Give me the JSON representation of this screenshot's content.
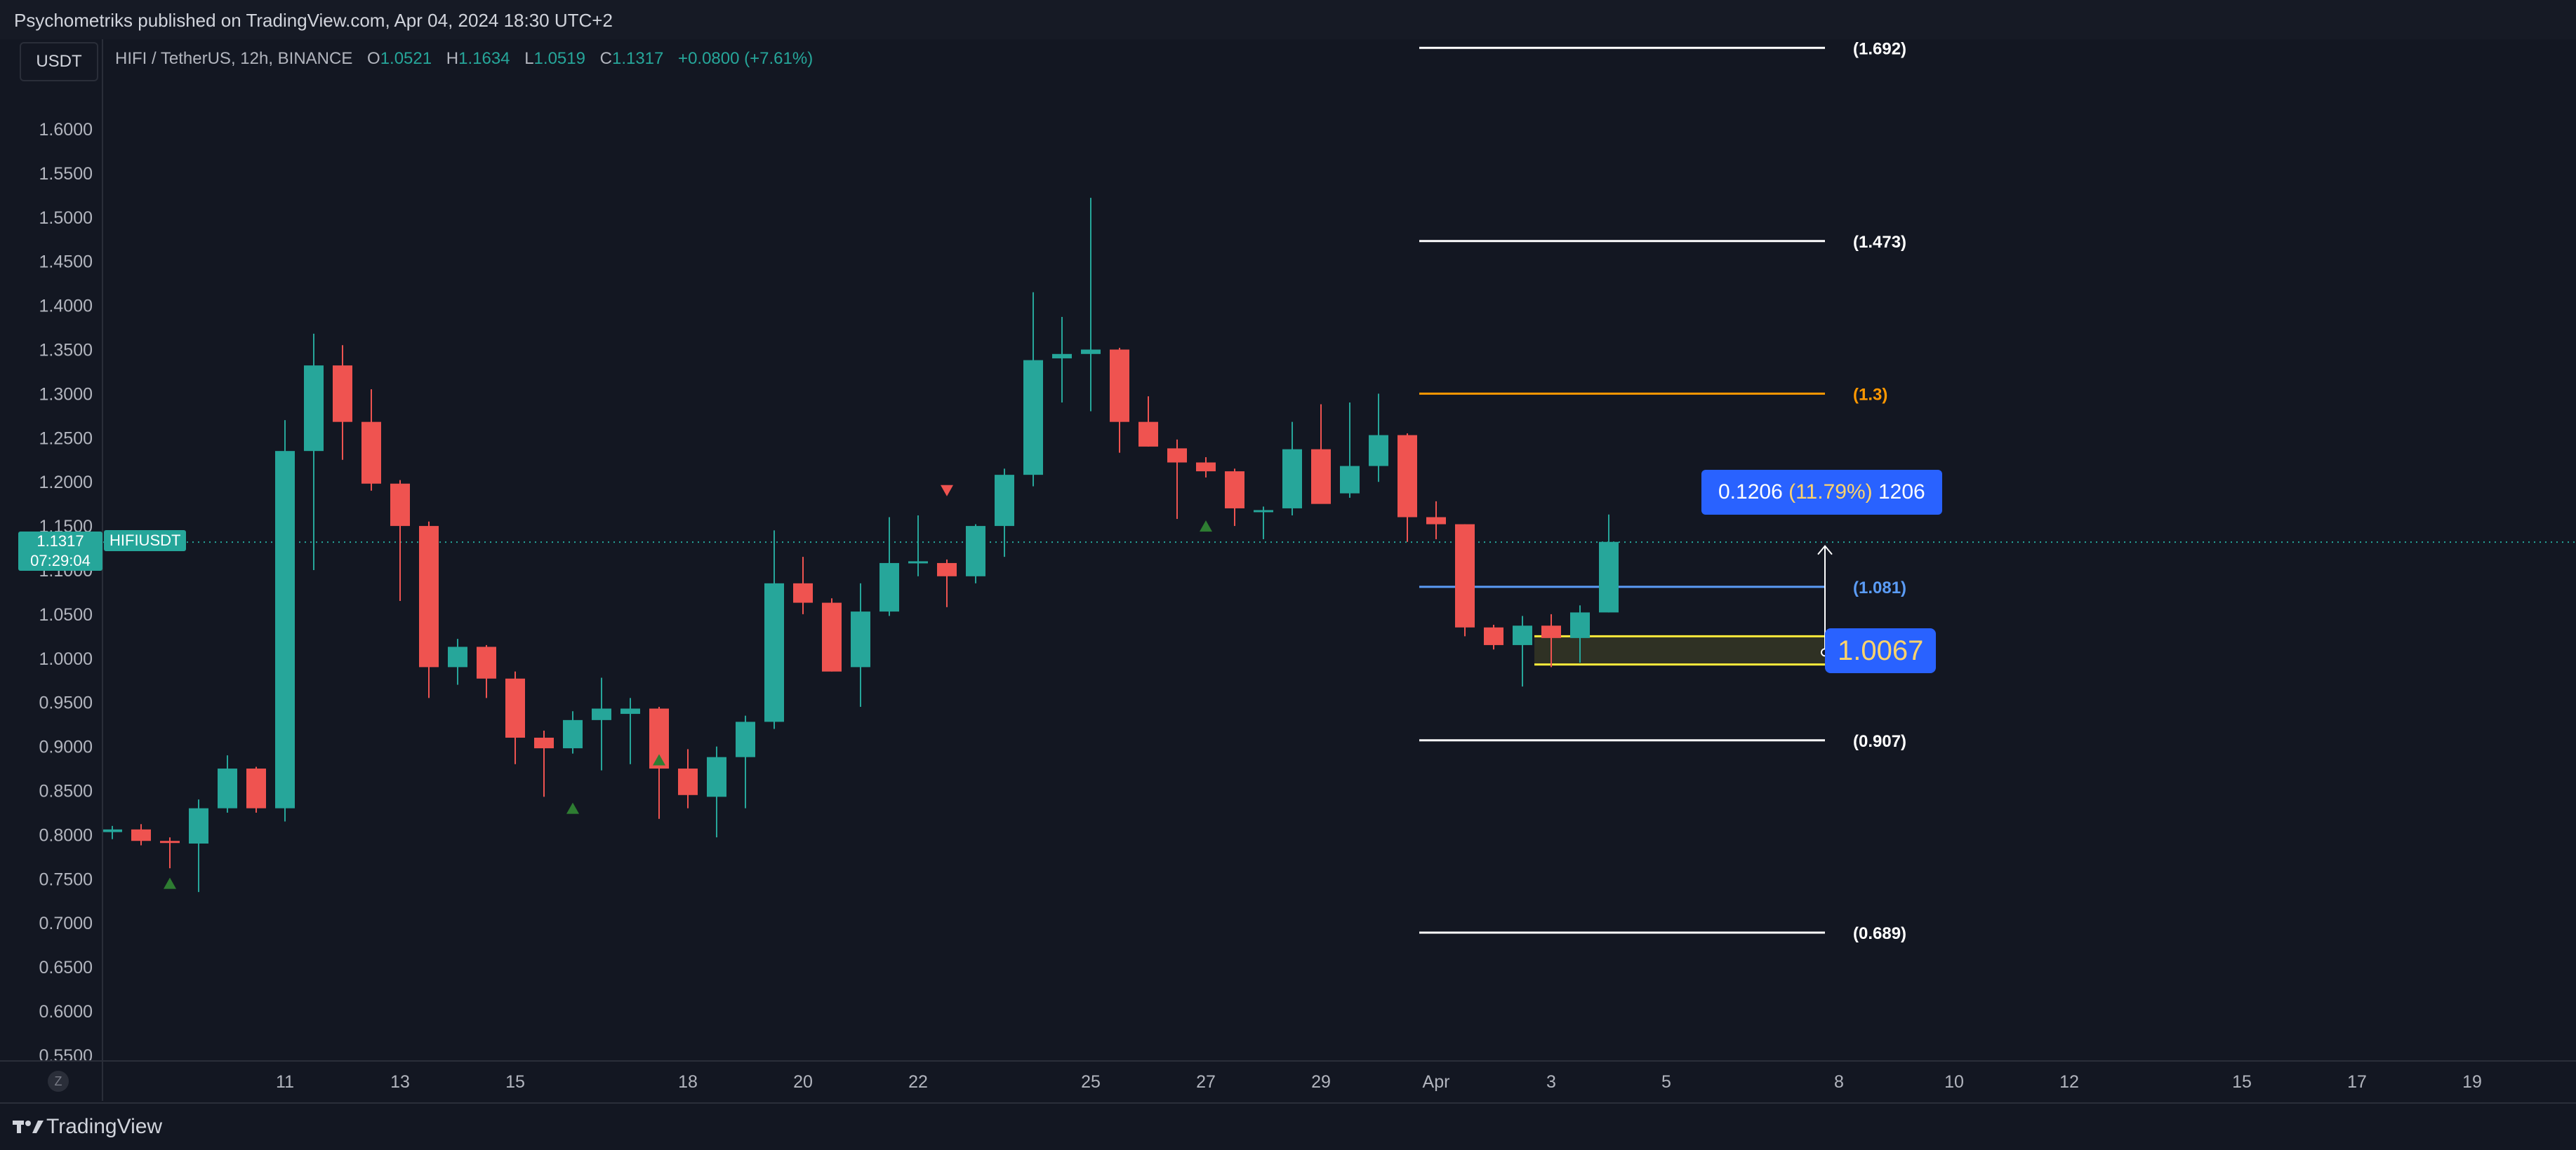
{
  "header": {
    "published_text": "Psychometriks published on TradingView.com, Apr 04, 2024 18:30 UTC+2"
  },
  "toolbar": {
    "currency": "USDT"
  },
  "legend": {
    "symbol_desc": "HIFI / TetherUS, 12h, BINANCE",
    "open_label": "O",
    "open": "1.0521",
    "high_label": "H",
    "high": "1.1634",
    "low_label": "L",
    "low": "1.0519",
    "close_label": "C",
    "close": "1.1317",
    "change": "+0.0800 (+7.61%)"
  },
  "price_tag": {
    "price": "1.1317",
    "countdown": "07:29:04",
    "symbol": "HIFIUSDT"
  },
  "measure": {
    "value": "0.1206",
    "percent": "(11.79%)",
    "ticks": "1206",
    "cursor_price": "1.0067"
  },
  "footer": {
    "brand": "TradingView",
    "z_button": "Z"
  },
  "colors": {
    "background": "#131722",
    "up": "#26a69a",
    "down": "#ef5350",
    "fib_white": "#ffffff",
    "fib_orange": "#ff9800",
    "fib_blue": "#5b9cf6",
    "measure_box": "#2962ff"
  },
  "chart_data": {
    "type": "candlestick",
    "ylim": [
      0.55,
      1.65
    ],
    "y_ticks": [
      "1.6000",
      "1.5500",
      "1.5000",
      "1.4500",
      "1.4000",
      "1.3500",
      "1.3000",
      "1.2500",
      "1.2000",
      "1.1500",
      "1.1000",
      "1.0500",
      "1.0000",
      "0.9500",
      "0.9000",
      "0.8500",
      "0.8000",
      "0.7500",
      "0.7000",
      "0.6500",
      "0.6000",
      "0.5500"
    ],
    "x_ticks": [
      {
        "label": "11",
        "bar": 6
      },
      {
        "label": "13",
        "bar": 10
      },
      {
        "label": "15",
        "bar": 14
      },
      {
        "label": "18",
        "bar": 20
      },
      {
        "label": "20",
        "bar": 24
      },
      {
        "label": "22",
        "bar": 28
      },
      {
        "label": "25",
        "bar": 34
      },
      {
        "label": "27",
        "bar": 38
      },
      {
        "label": "29",
        "bar": 42
      },
      {
        "label": "Apr",
        "bar": 46
      },
      {
        "label": "3",
        "bar": 50
      },
      {
        "label": "5",
        "bar": 54
      },
      {
        "label": "8",
        "bar": 60
      },
      {
        "label": "10",
        "bar": 64
      },
      {
        "label": "12",
        "bar": 68
      },
      {
        "label": "15",
        "bar": 74
      },
      {
        "label": "17",
        "bar": 78
      },
      {
        "label": "19",
        "bar": 82
      }
    ],
    "candles": [
      {
        "o": 0.803,
        "h": 0.81,
        "l": 0.795,
        "c": 0.806
      },
      {
        "o": 0.806,
        "h": 0.812,
        "l": 0.788,
        "c": 0.793
      },
      {
        "o": 0.793,
        "h": 0.797,
        "l": 0.762,
        "c": 0.792
      },
      {
        "o": 0.79,
        "h": 0.84,
        "l": 0.735,
        "c": 0.83
      },
      {
        "o": 0.83,
        "h": 0.89,
        "l": 0.825,
        "c": 0.875
      },
      {
        "o": 0.875,
        "h": 0.877,
        "l": 0.825,
        "c": 0.83
      },
      {
        "o": 0.83,
        "h": 1.27,
        "l": 0.815,
        "c": 1.235
      },
      {
        "o": 1.235,
        "h": 1.368,
        "l": 1.1,
        "c": 1.332
      },
      {
        "o": 1.332,
        "h": 1.355,
        "l": 1.225,
        "c": 1.268
      },
      {
        "o": 1.268,
        "h": 1.305,
        "l": 1.19,
        "c": 1.198
      },
      {
        "o": 1.198,
        "h": 1.202,
        "l": 1.065,
        "c": 1.15
      },
      {
        "o": 1.15,
        "h": 1.155,
        "l": 0.955,
        "c": 0.99
      },
      {
        "o": 0.99,
        "h": 1.022,
        "l": 0.97,
        "c": 1.013
      },
      {
        "o": 1.013,
        "h": 1.015,
        "l": 0.955,
        "c": 0.977
      },
      {
        "o": 0.977,
        "h": 0.985,
        "l": 0.88,
        "c": 0.91
      },
      {
        "o": 0.91,
        "h": 0.918,
        "l": 0.843,
        "c": 0.898
      },
      {
        "o": 0.898,
        "h": 0.94,
        "l": 0.892,
        "c": 0.93
      },
      {
        "o": 0.93,
        "h": 0.978,
        "l": 0.873,
        "c": 0.943
      },
      {
        "o": 0.937,
        "h": 0.955,
        "l": 0.88,
        "c": 0.943
      },
      {
        "o": 0.943,
        "h": 0.945,
        "l": 0.818,
        "c": 0.875
      },
      {
        "o": 0.875,
        "h": 0.897,
        "l": 0.83,
        "c": 0.845
      },
      {
        "o": 0.843,
        "h": 0.9,
        "l": 0.797,
        "c": 0.888
      },
      {
        "o": 0.888,
        "h": 0.935,
        "l": 0.83,
        "c": 0.928
      },
      {
        "o": 0.928,
        "h": 1.145,
        "l": 0.92,
        "c": 1.085
      },
      {
        "o": 1.085,
        "h": 1.115,
        "l": 1.05,
        "c": 1.063
      },
      {
        "o": 1.063,
        "h": 1.068,
        "l": 0.985,
        "c": 0.985
      },
      {
        "o": 0.99,
        "h": 1.085,
        "l": 0.945,
        "c": 1.053
      },
      {
        "o": 1.053,
        "h": 1.16,
        "l": 1.048,
        "c": 1.108
      },
      {
        "o": 1.108,
        "h": 1.162,
        "l": 1.093,
        "c": 1.11
      },
      {
        "o": 1.108,
        "h": 1.112,
        "l": 1.058,
        "c": 1.093
      },
      {
        "o": 1.093,
        "h": 1.152,
        "l": 1.085,
        "c": 1.15
      },
      {
        "o": 1.15,
        "h": 1.215,
        "l": 1.115,
        "c": 1.208
      },
      {
        "o": 1.208,
        "h": 1.415,
        "l": 1.195,
        "c": 1.338
      },
      {
        "o": 1.34,
        "h": 1.387,
        "l": 1.29,
        "c": 1.345
      },
      {
        "o": 1.345,
        "h": 1.522,
        "l": 1.28,
        "c": 1.35
      },
      {
        "o": 1.35,
        "h": 1.352,
        "l": 1.233,
        "c": 1.268
      },
      {
        "o": 1.268,
        "h": 1.297,
        "l": 1.24,
        "c": 1.24
      },
      {
        "o": 1.238,
        "h": 1.248,
        "l": 1.158,
        "c": 1.222
      },
      {
        "o": 1.222,
        "h": 1.228,
        "l": 1.205,
        "c": 1.212
      },
      {
        "o": 1.212,
        "h": 1.215,
        "l": 1.15,
        "c": 1.17
      },
      {
        "o": 1.168,
        "h": 1.172,
        "l": 1.135,
        "c": 1.168
      },
      {
        "o": 1.17,
        "h": 1.268,
        "l": 1.162,
        "c": 1.237
      },
      {
        "o": 1.237,
        "h": 1.288,
        "l": 1.18,
        "c": 1.175
      },
      {
        "o": 1.187,
        "h": 1.29,
        "l": 1.182,
        "c": 1.218
      },
      {
        "o": 1.218,
        "h": 1.3,
        "l": 1.2,
        "c": 1.253
      },
      {
        "o": 1.253,
        "h": 1.255,
        "l": 1.132,
        "c": 1.16
      },
      {
        "o": 1.16,
        "h": 1.178,
        "l": 1.135,
        "c": 1.152
      },
      {
        "o": 1.152,
        "h": 1.152,
        "l": 1.025,
        "c": 1.035
      },
      {
        "o": 1.035,
        "h": 1.038,
        "l": 1.01,
        "c": 1.015
      },
      {
        "o": 1.015,
        "h": 1.048,
        "l": 0.968,
        "c": 1.037
      },
      {
        "o": 1.037,
        "h": 1.05,
        "l": 0.99,
        "c": 1.023
      },
      {
        "o": 1.023,
        "h": 1.06,
        "l": 0.995,
        "c": 1.052
      },
      {
        "o": 1.052,
        "h": 1.163,
        "l": 1.052,
        "c": 1.132
      }
    ],
    "markers": [
      {
        "bar": 2,
        "price": 0.745,
        "type": "up"
      },
      {
        "bar": 16,
        "price": 0.83,
        "type": "up"
      },
      {
        "bar": 19,
        "price": 0.885,
        "type": "up"
      },
      {
        "bar": 29,
        "price": 1.19,
        "type": "down"
      },
      {
        "bar": 38,
        "price": 1.15,
        "type": "up"
      }
    ],
    "fib_levels": [
      {
        "price": 1.692,
        "label": "(1.692)",
        "color": "#ffffff"
      },
      {
        "price": 1.473,
        "label": "(1.473)",
        "color": "#ffffff"
      },
      {
        "price": 1.3,
        "label": "(1.3)",
        "color": "#ff9800"
      },
      {
        "price": 1.081,
        "label": "(1.081)",
        "color": "#5b9cf6"
      },
      {
        "price": 0.907,
        "label": "(0.907)",
        "color": "#ffffff"
      },
      {
        "price": 0.689,
        "label": "(0.689)",
        "color": "#ffffff"
      }
    ],
    "zone": {
      "top": 1.025,
      "bottom": 0.993
    },
    "current_price": 1.1317
  }
}
